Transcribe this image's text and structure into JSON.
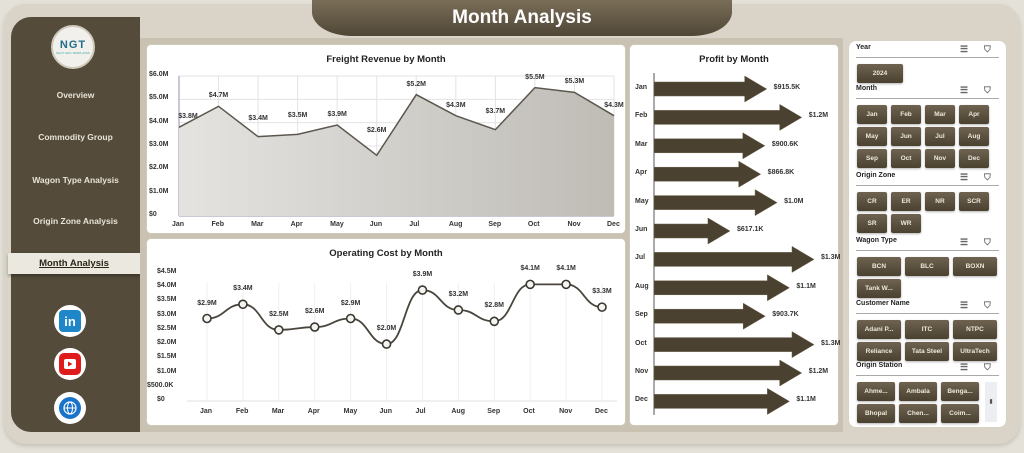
{
  "header": {
    "title": "Month Analysis"
  },
  "logo": {
    "text": "NGT",
    "subtitle": "NEXT GEN TEMPLATES"
  },
  "sidebar": {
    "items": [
      {
        "label": "Overview",
        "active": false
      },
      {
        "label": "Commodity Group",
        "active": false
      },
      {
        "label": "Wagon Type Analysis",
        "active": false
      },
      {
        "label": "Origin Zone Analysis",
        "active": false
      },
      {
        "label": "Month Analysis",
        "active": true
      }
    ],
    "social": [
      "linkedin-icon",
      "youtube-icon",
      "globe-icon"
    ]
  },
  "colors": {
    "brand_dark": "#544b3a",
    "button": "#5c5140",
    "arrow": "#4a4130",
    "area": "#d5d3cf"
  },
  "chart_data": [
    {
      "type": "area",
      "title": "Freight Revenue by Month",
      "categories": [
        "Jan",
        "Feb",
        "Mar",
        "Apr",
        "May",
        "Jun",
        "Jul",
        "Aug",
        "Sep",
        "Oct",
        "Nov",
        "Dec"
      ],
      "values": [
        3.8,
        4.7,
        3.4,
        3.5,
        3.9,
        2.6,
        5.2,
        4.3,
        3.7,
        5.5,
        5.3,
        4.3
      ],
      "labels": [
        "$3.8M",
        "$4.7M",
        "$3.4M",
        "$3.5M",
        "$3.9M",
        "$2.6M",
        "$5.2M",
        "$4.3M",
        "$3.7M",
        "$5.5M",
        "$5.3M",
        "$4.3M"
      ],
      "yticks": [
        "$0",
        "$1.0M",
        "$2.0M",
        "$3.0M",
        "$4.0M",
        "$5.0M",
        "$6.0M"
      ],
      "ylim": [
        0,
        6
      ],
      "grid": true
    },
    {
      "type": "line",
      "title": "Operating Cost by Month",
      "categories": [
        "Jan",
        "Feb",
        "Mar",
        "Apr",
        "May",
        "Jun",
        "Jul",
        "Aug",
        "Sep",
        "Oct",
        "Nov",
        "Dec"
      ],
      "values": [
        2.9,
        3.4,
        2.5,
        2.6,
        2.9,
        2.0,
        3.9,
        3.2,
        2.8,
        4.1,
        4.1,
        3.3
      ],
      "labels": [
        "$2.9M",
        "$3.4M",
        "$2.5M",
        "$2.6M",
        "$2.9M",
        "$2.0M",
        "$3.9M",
        "$3.2M",
        "$2.8M",
        "$4.1M",
        "$4.1M",
        "$3.3M"
      ],
      "yticks": [
        "$0",
        "$500.0K",
        "$1.0M",
        "$1.5M",
        "$2.0M",
        "$2.5M",
        "$3.0M",
        "$3.5M",
        "$4.0M",
        "$4.5M"
      ],
      "ylim": [
        0,
        4.5
      ],
      "grid": false
    },
    {
      "type": "bar",
      "orientation": "horizontal",
      "title": "Profit by Month",
      "categories": [
        "Jan",
        "Feb",
        "Mar",
        "Apr",
        "May",
        "Jun",
        "Jul",
        "Aug",
        "Sep",
        "Oct",
        "Nov",
        "Dec"
      ],
      "values": [
        915.5,
        1200,
        900.6,
        866.8,
        1000,
        617.1,
        1300,
        1100,
        903.7,
        1300,
        1200,
        1100
      ],
      "labels": [
        "$915.5K",
        "$1.2M",
        "$900.6K",
        "$866.8K",
        "$1.0M",
        "$617.1K",
        "$1.3M",
        "$1.1M",
        "$903.7K",
        "$1.3M",
        "$1.2M",
        "$1.1M"
      ],
      "unit": "K"
    }
  ],
  "slicers": {
    "year": {
      "title": "Year",
      "items": [
        "2024"
      ]
    },
    "month": {
      "title": "Month",
      "items": [
        "Jan",
        "Feb",
        "Mar",
        "Apr",
        "May",
        "Jun",
        "Jul",
        "Aug",
        "Sep",
        "Oct",
        "Nov",
        "Dec"
      ]
    },
    "origin_zone": {
      "title": "Origin Zone",
      "items": [
        "CR",
        "ER",
        "NR",
        "SCR",
        "SR",
        "WR"
      ]
    },
    "wagon_type": {
      "title": "Wagon Type",
      "items": [
        "BCN",
        "BLC",
        "BOXN",
        "Tank W..."
      ]
    },
    "customer_name": {
      "title": "Customer Name",
      "items": [
        "Adani P...",
        "ITC",
        "NTPC",
        "Reliance",
        "Tata Steel",
        "UltraTech"
      ]
    },
    "origin_station": {
      "title": "Origin Station",
      "items": [
        "Ahme...",
        "Ambala",
        "Benga...",
        "Bhopal",
        "Chen...",
        "Coim..."
      ]
    }
  }
}
